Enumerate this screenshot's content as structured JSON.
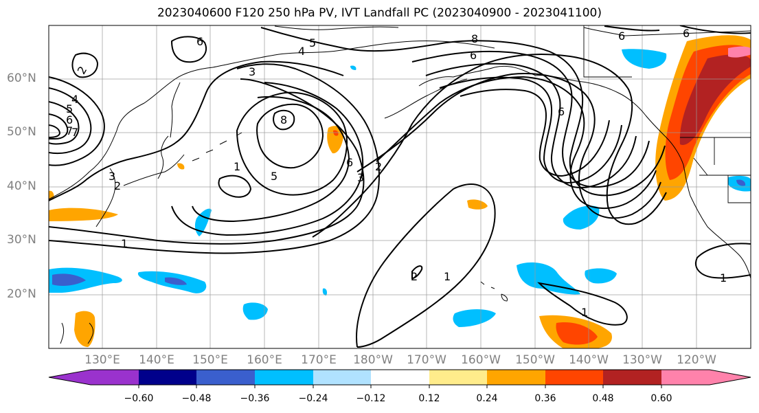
{
  "title": "2023040600 F120 250 hPa PV, IVT Landfall PC (2023040900 - 2023041100)",
  "lat_labels": [
    "60°N",
    "50°N",
    "40°N",
    "30°N",
    "20°N"
  ],
  "lon_labels": [
    "130°E",
    "140°E",
    "150°E",
    "160°E",
    "170°E",
    "180°W",
    "170°W",
    "160°W",
    "150°W",
    "140°W",
    "130°W",
    "120°W"
  ],
  "colorbar": {
    "colors": [
      "#9a32cd",
      "#00008b",
      "#3a5fcd",
      "#00bfff",
      "#b0e2ff",
      "#ffffff",
      "#ffec8b",
      "#ffa500",
      "#ff4500",
      "#b22222",
      "#ff82ab"
    ],
    "tick_labels": [
      "−0.60",
      "−0.48",
      "−0.36",
      "−0.24",
      "−0.12",
      "0.12",
      "0.24",
      "0.36",
      "0.48",
      "0.60"
    ]
  },
  "contour_labels": [
    "6",
    "2",
    "5",
    "4",
    "3",
    "8",
    "6",
    "6",
    "7",
    "5",
    "4",
    "7",
    "6",
    "3",
    "2",
    "2",
    "8",
    "6",
    "3",
    "5",
    "1",
    "2",
    "1",
    "1",
    "1",
    "1",
    "6",
    "6"
  ]
}
